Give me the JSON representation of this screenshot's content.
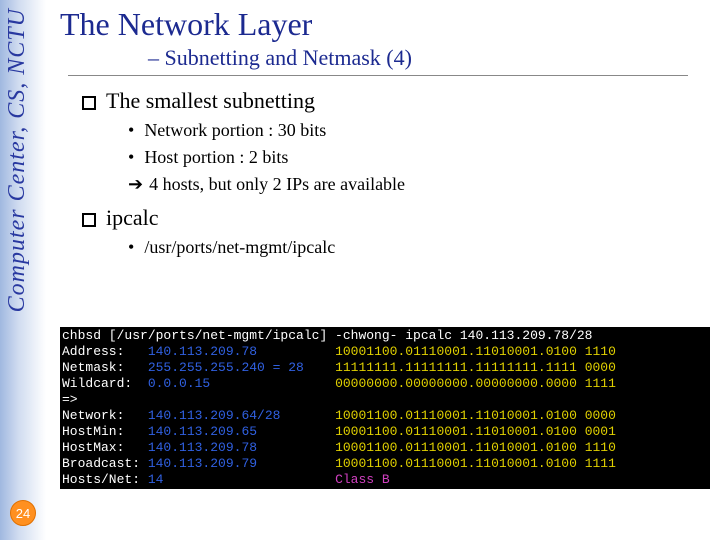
{
  "sidebar": {
    "vertical_label": "Computer Center, CS, NCTU",
    "page_number": "24"
  },
  "header": {
    "title": "The Network Layer",
    "subtitle": "– Subnetting and Netmask (4)"
  },
  "content": {
    "q1": "The smallest subnetting",
    "q1_sub": {
      "a": "Network portion : 30 bits",
      "b": "Host portion : 2 bits",
      "c": "4 hosts, but only 2 IPs are available"
    },
    "q2": "ipcalc",
    "q2_sub": {
      "a": "/usr/ports/net-mgmt/ipcalc"
    }
  },
  "terminal": {
    "prompt1": "chbsd [/usr/ports/net-mgmt/ipcalc] -chwong- ipcalc 140.113.209.78/28",
    "rows": [
      {
        "label": "Address:",
        "v1": "140.113.209.78",
        "v2": "10001100.01110001.11010001.0100 1110"
      },
      {
        "label": "Netmask:",
        "v1": "255.255.255.240 = 28",
        "v2": "11111111.11111111.11111111.1111 0000"
      },
      {
        "label": "Wildcard:",
        "v1": "0.0.0.15",
        "v2": "00000000.00000000.00000000.0000 1111"
      }
    ],
    "arrow": "=>",
    "rows2": [
      {
        "label": "Network:",
        "v1": "140.113.209.64/28",
        "v2": "10001100.01110001.11010001.0100 0000"
      },
      {
        "label": "HostMin:",
        "v1": "140.113.209.65",
        "v2": "10001100.01110001.11010001.0100 0001"
      },
      {
        "label": "HostMax:",
        "v1": "140.113.209.78",
        "v2": "10001100.01110001.11010001.0100 1110"
      },
      {
        "label": "Broadcast:",
        "v1": "140.113.209.79",
        "v2": "10001100.01110001.11010001.0100 1111"
      },
      {
        "label": "Hosts/Net:",
        "v1": "14",
        "v2": "Class B",
        "class2": "m"
      }
    ]
  }
}
